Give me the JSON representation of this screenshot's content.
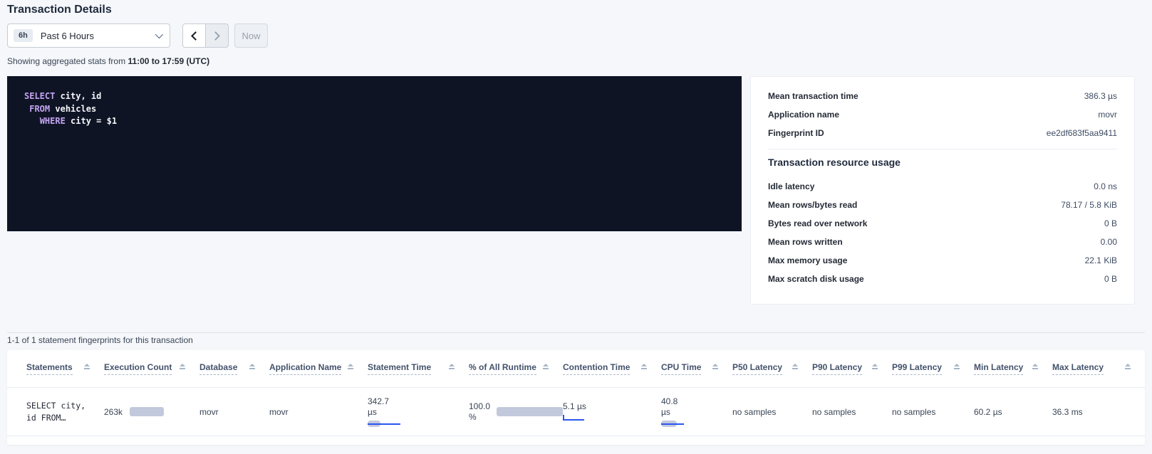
{
  "page": {
    "title": "Transaction Details"
  },
  "time_picker": {
    "range_badge": "6h",
    "range_label": "Past 6 Hours",
    "now_label": "Now"
  },
  "subtitle": {
    "prefix": "Showing aggregated stats from ",
    "range": "11:00 to 17:59 (UTC)"
  },
  "sql": {
    "lines": [
      [
        {
          "text": "SELECT",
          "type": "keyword"
        },
        {
          "text": " city, id",
          "type": "plain"
        }
      ],
      [
        {
          "text": " ",
          "type": "plain"
        },
        {
          "text": "FROM",
          "type": "keyword"
        },
        {
          "text": " vehicles",
          "type": "plain"
        }
      ],
      [
        {
          "text": "   ",
          "type": "plain"
        },
        {
          "text": "WHERE",
          "type": "keyword"
        },
        {
          "text": " city = $1",
          "type": "plain"
        }
      ]
    ]
  },
  "details_panel": {
    "summary": [
      {
        "label": "Mean transaction time",
        "value": "386.3 µs"
      },
      {
        "label": "Application name",
        "value": "movr"
      },
      {
        "label": "Fingerprint ID",
        "value": "ee2df683f5aa9411"
      }
    ],
    "resource_heading": "Transaction resource usage",
    "resource": [
      {
        "label": "Idle latency",
        "value": "0.0 ns"
      },
      {
        "label": "Mean rows/bytes read",
        "value": "78.17 / 5.8 KiB"
      },
      {
        "label": "Bytes read over network",
        "value": "0 B"
      },
      {
        "label": "Mean rows written",
        "value": "0.00"
      },
      {
        "label": "Max memory usage",
        "value": "22.1 KiB"
      },
      {
        "label": "Max scratch disk usage",
        "value": "0 B"
      }
    ]
  },
  "statements_section": {
    "caption": "1-1 of 1 statement fingerprints for this transaction",
    "columns": [
      "Statements",
      "Execution Count",
      "Database",
      "Application Name",
      "Statement Time",
      "% of All Runtime",
      "Contention Time",
      "CPU Time",
      "P50 Latency",
      "P90 Latency",
      "P99 Latency",
      "Min Latency",
      "Max Latency"
    ],
    "row": {
      "statement": "SELECT city,\nid FROM…",
      "execution_count": "263k",
      "database": "movr",
      "application_name": "movr",
      "statement_time": "342.7 µs",
      "pct_of_all_runtime": "100.0 %",
      "contention_time": "5.1 µs",
      "cpu_time": "40.8 µs",
      "p50_latency": "no samples",
      "p90_latency": "no samples",
      "p99_latency": "no samples",
      "min_latency": "60.2 µs",
      "max_latency": "36.3 ms"
    }
  },
  "colors": {
    "accent_blue": "#2b55f0",
    "bar_gray": "#c3c9dc",
    "sql_keyword": "#c4a4f2",
    "sql_bg": "#0e1424"
  }
}
